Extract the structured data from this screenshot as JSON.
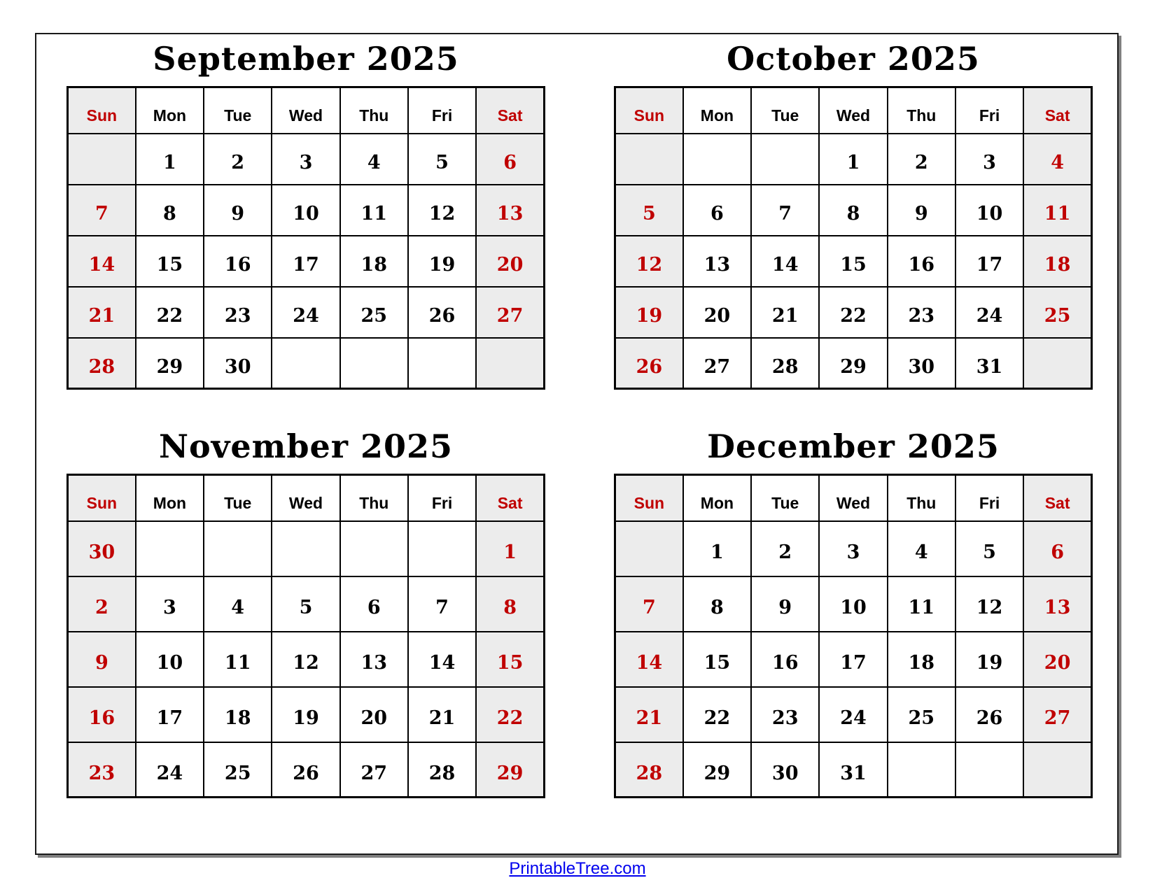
{
  "footer": {
    "link_text": "PrintableTree.com"
  },
  "weekdays": [
    "Sun",
    "Mon",
    "Tue",
    "Wed",
    "Thu",
    "Fri",
    "Sat"
  ],
  "colors": {
    "weekend_text": "#c00000",
    "weekend_bg": "#ececec",
    "grid_line": "#000000",
    "link": "#0000ee",
    "frame_border": "#1a1a1a",
    "frame_shadow": "#808080"
  },
  "months": [
    {
      "title": "September 2025",
      "rows": [
        [
          "",
          "1",
          "2",
          "3",
          "4",
          "5",
          "6"
        ],
        [
          "7",
          "8",
          "9",
          "10",
          "11",
          "12",
          "13"
        ],
        [
          "14",
          "15",
          "16",
          "17",
          "18",
          "19",
          "20"
        ],
        [
          "21",
          "22",
          "23",
          "24",
          "25",
          "26",
          "27"
        ],
        [
          "28",
          "29",
          "30",
          "",
          "",
          "",
          ""
        ]
      ]
    },
    {
      "title": "October 2025",
      "rows": [
        [
          "",
          "",
          "",
          "1",
          "2",
          "3",
          "4"
        ],
        [
          "5",
          "6",
          "7",
          "8",
          "9",
          "10",
          "11"
        ],
        [
          "12",
          "13",
          "14",
          "15",
          "16",
          "17",
          "18"
        ],
        [
          "19",
          "20",
          "21",
          "22",
          "23",
          "24",
          "25"
        ],
        [
          "26",
          "27",
          "28",
          "29",
          "30",
          "31",
          ""
        ]
      ]
    },
    {
      "title": "November 2025",
      "rows": [
        [
          "30",
          "",
          "",
          "",
          "",
          "",
          "1"
        ],
        [
          "2",
          "3",
          "4",
          "5",
          "6",
          "7",
          "8"
        ],
        [
          "9",
          "10",
          "11",
          "12",
          "13",
          "14",
          "15"
        ],
        [
          "16",
          "17",
          "18",
          "19",
          "20",
          "21",
          "22"
        ],
        [
          "23",
          "24",
          "25",
          "26",
          "27",
          "28",
          "29"
        ]
      ]
    },
    {
      "title": "December 2025",
      "rows": [
        [
          "",
          "1",
          "2",
          "3",
          "4",
          "5",
          "6"
        ],
        [
          "7",
          "8",
          "9",
          "10",
          "11",
          "12",
          "13"
        ],
        [
          "14",
          "15",
          "16",
          "17",
          "18",
          "19",
          "20"
        ],
        [
          "21",
          "22",
          "23",
          "24",
          "25",
          "26",
          "27"
        ],
        [
          "28",
          "29",
          "30",
          "31",
          "",
          "",
          ""
        ]
      ]
    }
  ]
}
